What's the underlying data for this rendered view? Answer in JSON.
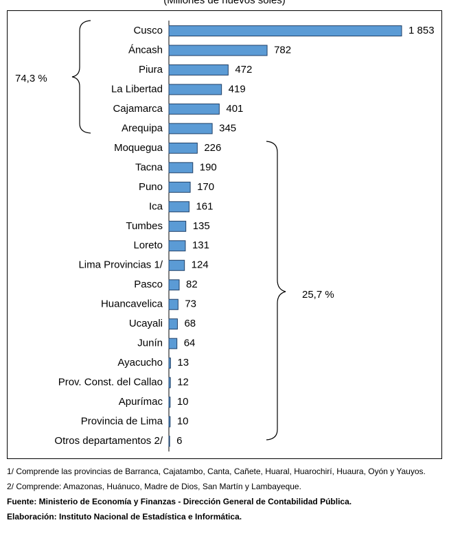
{
  "chart_data": {
    "type": "bar",
    "orientation": "horizontal",
    "subtitle": "(Millones de nuevos soles)",
    "categories": [
      "Cusco",
      "Áncash",
      "Piura",
      "La Libertad",
      "Cajamarca",
      "Arequipa",
      "Moquegua",
      "Tacna",
      "Puno",
      "Ica",
      "Tumbes",
      "Loreto",
      "Lima Provincias 1/",
      "Pasco",
      "Huancavelica",
      "Ucayali",
      "Junín",
      "Ayacucho",
      "Prov. Const. del Callao",
      "Apurímac",
      "Provincia de Lima",
      "Otros departamentos 2/"
    ],
    "values": [
      1853,
      782,
      472,
      419,
      401,
      345,
      226,
      190,
      170,
      161,
      135,
      131,
      124,
      82,
      73,
      68,
      64,
      13,
      12,
      10,
      10,
      6
    ],
    "value_labels": [
      "1 853",
      "782",
      "472",
      "419",
      "401",
      "345",
      "226",
      "190",
      "170",
      "161",
      "135",
      "131",
      "124",
      "82",
      "73",
      "68",
      "64",
      "13",
      "12",
      "10",
      "10",
      "6"
    ],
    "color": "#5b9bd5",
    "brackets": [
      {
        "label": "74,3 %"
      },
      {
        "label": "25,7 %"
      }
    ]
  },
  "notes": [
    "1/  Comprende las provincias de Barranca, Cajatambo, Canta, Cañete, Huaral, Huarochirí, Huaura, Oyón y Yauyos.",
    "2/  Comprende: Amazonas, Huánuco, Madre de Dios, San Martín y Lambayeque.",
    "Fuente: Ministerio de Economía y Finanzas - Dirección General de Contabilidad Pública.",
    "Elaboración: Instituto Nacional de Estadística e Informática."
  ]
}
